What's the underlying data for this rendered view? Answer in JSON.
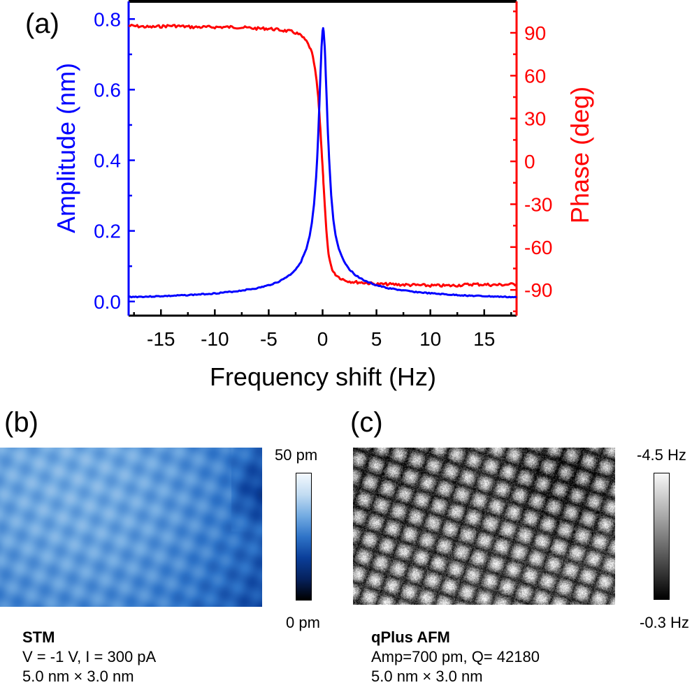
{
  "panels": {
    "a": {
      "label": "(a)"
    },
    "b": {
      "label": "(b)",
      "colorbar": {
        "max_label": "50 pm",
        "min_label": "0 pm",
        "colors": [
          "#000000",
          "#06225e",
          "#0b3f9a",
          "#2f74c8",
          "#74ace2",
          "#c2dcf2",
          "#f4f9fe"
        ]
      },
      "caption": {
        "title": "STM",
        "line1": "V = -1 V, I = 300 pA",
        "line2": "5.0 nm × 3.0 nm"
      }
    },
    "c": {
      "label": "(c)",
      "colorbar": {
        "max_label": "-4.5 Hz",
        "min_label": "-0.3 Hz",
        "colors": [
          "#000000",
          "#555555",
          "#aaaaaa",
          "#f8f8f8"
        ]
      },
      "caption": {
        "title": "qPlus AFM",
        "line1": "Amp=700 pm, Q= 42180",
        "line2": "5.0 nm × 3.0 nm"
      }
    }
  },
  "chart_data": {
    "type": "line",
    "title": "",
    "xlabel": "Frequency shift (Hz)",
    "ylabel": "Amplitude (nm)",
    "ylabel_right": "Phase (deg)",
    "xlim": [
      -18,
      18
    ],
    "ylim": [
      -0.04,
      0.85
    ],
    "ylim_right": [
      -108,
      112
    ],
    "xticks": [
      -15,
      -10,
      -5,
      0,
      5,
      10,
      15
    ],
    "xtick_labels": [
      "-15",
      "-10",
      "-5",
      "0",
      "5",
      "10",
      "15"
    ],
    "yticks": [
      0.0,
      0.2,
      0.4,
      0.6,
      0.8
    ],
    "ytick_labels": [
      "0.0",
      "0.2",
      "0.4",
      "0.6",
      "0.8"
    ],
    "yticks_right": [
      90,
      60,
      30,
      0,
      -30,
      -60,
      -90
    ],
    "ytick_labels_right": [
      "90",
      "60",
      "30",
      "0",
      "-30",
      "-60",
      "-90"
    ],
    "grid": false,
    "colors": {
      "amplitude": "#0000ff",
      "phase": "#ff0000",
      "frame": "#000000"
    },
    "x": [
      -18,
      -16,
      -14,
      -12,
      -10,
      -8,
      -6,
      -5,
      -4,
      -3,
      -2.5,
      -2,
      -1.5,
      -1.2,
      -1,
      -0.8,
      -0.6,
      -0.5,
      -0.4,
      -0.3,
      -0.2,
      -0.1,
      0,
      0.05,
      0.1,
      0.2,
      0.3,
      0.4,
      0.5,
      0.6,
      0.8,
      1,
      1.2,
      1.5,
      2,
      2.5,
      3,
      4,
      5,
      6,
      8,
      10,
      12,
      14,
      16,
      18
    ],
    "series": [
      {
        "name": "Amplitude",
        "axis": "left",
        "values": [
          0.013,
          0.014,
          0.016,
          0.019,
          0.023,
          0.029,
          0.038,
          0.046,
          0.057,
          0.076,
          0.091,
          0.113,
          0.149,
          0.185,
          0.221,
          0.273,
          0.35,
          0.406,
          0.475,
          0.555,
          0.64,
          0.72,
          0.765,
          0.775,
          0.765,
          0.72,
          0.64,
          0.555,
          0.475,
          0.406,
          0.3,
          0.232,
          0.188,
          0.15,
          0.113,
          0.091,
          0.076,
          0.057,
          0.046,
          0.038,
          0.029,
          0.023,
          0.019,
          0.016,
          0.014,
          0.012
        ]
      },
      {
        "name": "Phase",
        "axis": "right",
        "values": [
          95,
          94,
          95,
          94,
          94,
          94,
          93,
          93,
          92,
          91,
          90,
          88,
          84,
          80,
          76,
          69,
          59,
          52,
          44,
          34,
          22,
          9,
          -4,
          -11,
          -18,
          -31,
          -43,
          -53,
          -61,
          -67,
          -74,
          -77,
          -79,
          -81,
          -83,
          -84,
          -84.5,
          -85,
          -86,
          -86,
          -86.5,
          -87,
          -87,
          -86,
          -86.5,
          -86
        ]
      }
    ]
  }
}
